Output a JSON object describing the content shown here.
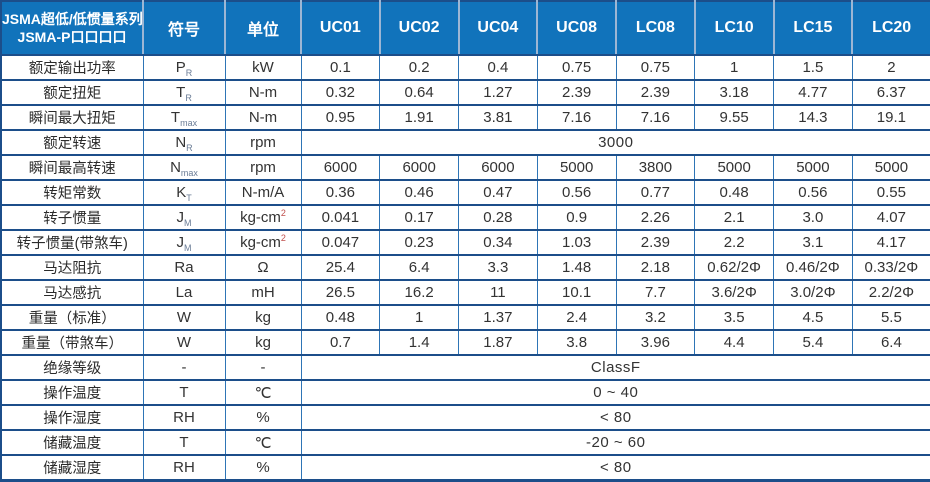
{
  "table": {
    "title_line1": "JSMA超低/低惯量系列",
    "title_line2": "JSMA-P口口口口",
    "symbol_header": "符号",
    "unit_header": "单位",
    "models": [
      "UC01",
      "UC02",
      "UC04",
      "UC08",
      "LC08",
      "LC10",
      "LC15",
      "LC20"
    ],
    "rows": [
      {
        "label": "额定输出功率",
        "symbol": "P",
        "symbol_sub": "R",
        "unit": "kW",
        "values": [
          "0.1",
          "0.2",
          "0.4",
          "0.75",
          "0.75",
          "1",
          "1.5",
          "2"
        ]
      },
      {
        "label": "额定扭矩",
        "symbol": "T",
        "symbol_sub": "R",
        "unit": "N-m",
        "values": [
          "0.32",
          "0.64",
          "1.27",
          "2.39",
          "2.39",
          "3.18",
          "4.77",
          "6.37"
        ]
      },
      {
        "label": "瞬间最大扭矩",
        "symbol": "T",
        "symbol_sub": "max",
        "unit": "N-m",
        "values": [
          "0.95",
          "1.91",
          "3.81",
          "7.16",
          "7.16",
          "9.55",
          "14.3",
          "19.1"
        ]
      },
      {
        "label": "额定转速",
        "symbol": "N",
        "symbol_sub": "R",
        "unit": "rpm",
        "span_value": "3000"
      },
      {
        "label": "瞬间最高转速",
        "symbol": "N",
        "symbol_sub": "max",
        "unit": "rpm",
        "values": [
          "6000",
          "6000",
          "6000",
          "5000",
          "3800",
          "5000",
          "5000",
          "5000"
        ]
      },
      {
        "label": "转矩常数",
        "symbol": "K",
        "symbol_sub": "T",
        "unit": "N-m/A",
        "values": [
          "0.36",
          "0.46",
          "0.47",
          "0.56",
          "0.77",
          "0.48",
          "0.56",
          "0.55"
        ]
      },
      {
        "label": "转子惯量",
        "symbol": "J",
        "symbol_sub": "M",
        "unit": "kg-cm",
        "unit_sup": "2",
        "values": [
          "0.041",
          "0.17",
          "0.28",
          "0.9",
          "2.26",
          "2.1",
          "3.0",
          "4.07"
        ]
      },
      {
        "label": "转子惯量(带煞车)",
        "symbol": "J",
        "symbol_sub": "M",
        "unit": "kg-cm",
        "unit_sup": "2",
        "values": [
          "0.047",
          "0.23",
          "0.34",
          "1.03",
          "2.39",
          "2.2",
          "3.1",
          "4.17"
        ]
      },
      {
        "label": "马达阻抗",
        "symbol": "Ra",
        "unit": "Ω",
        "values": [
          "25.4",
          "6.4",
          "3.3",
          "1.48",
          "2.18",
          "0.62/2Φ",
          "0.46/2Φ",
          "0.33/2Φ"
        ]
      },
      {
        "label": "马达感抗",
        "symbol": "La",
        "unit": "mH",
        "values": [
          "26.5",
          "16.2",
          "11",
          "10.1",
          "7.7",
          "3.6/2Φ",
          "3.0/2Φ",
          "2.2/2Φ"
        ]
      },
      {
        "label": "重量（标准）",
        "symbol": "W",
        "unit": "kg",
        "values": [
          "0.48",
          "1",
          "1.37",
          "2.4",
          "3.2",
          "3.5",
          "4.5",
          "5.5"
        ]
      },
      {
        "label": "重量（带煞车）",
        "symbol": "W",
        "unit": "kg",
        "values": [
          "0.7",
          "1.4",
          "1.87",
          "3.8",
          "3.96",
          "4.4",
          "5.4",
          "6.4"
        ]
      },
      {
        "label": "绝缘等级",
        "symbol": "-",
        "unit": "-",
        "span_value": "ClassF"
      },
      {
        "label": "操作温度",
        "symbol": "T",
        "unit": "℃",
        "span_value": "0 ~ 40"
      },
      {
        "label": "操作湿度",
        "symbol": "RH",
        "unit": "%",
        "span_value": "< 80"
      },
      {
        "label": "储藏温度",
        "symbol": "T",
        "unit": "℃",
        "span_value": "-20 ~ 60"
      },
      {
        "label": "储藏湿度",
        "symbol": "RH",
        "unit": "%",
        "span_value": "< 80"
      }
    ],
    "colors": {
      "header_bg": "#1173bb",
      "header_text": "#ffffff",
      "header_divider": "#9db6d4",
      "grid_dark": "#1c4e8a",
      "grid_blue": "#2e75b6",
      "superscript_red": "#c0504d",
      "body_text": "#333333"
    }
  }
}
